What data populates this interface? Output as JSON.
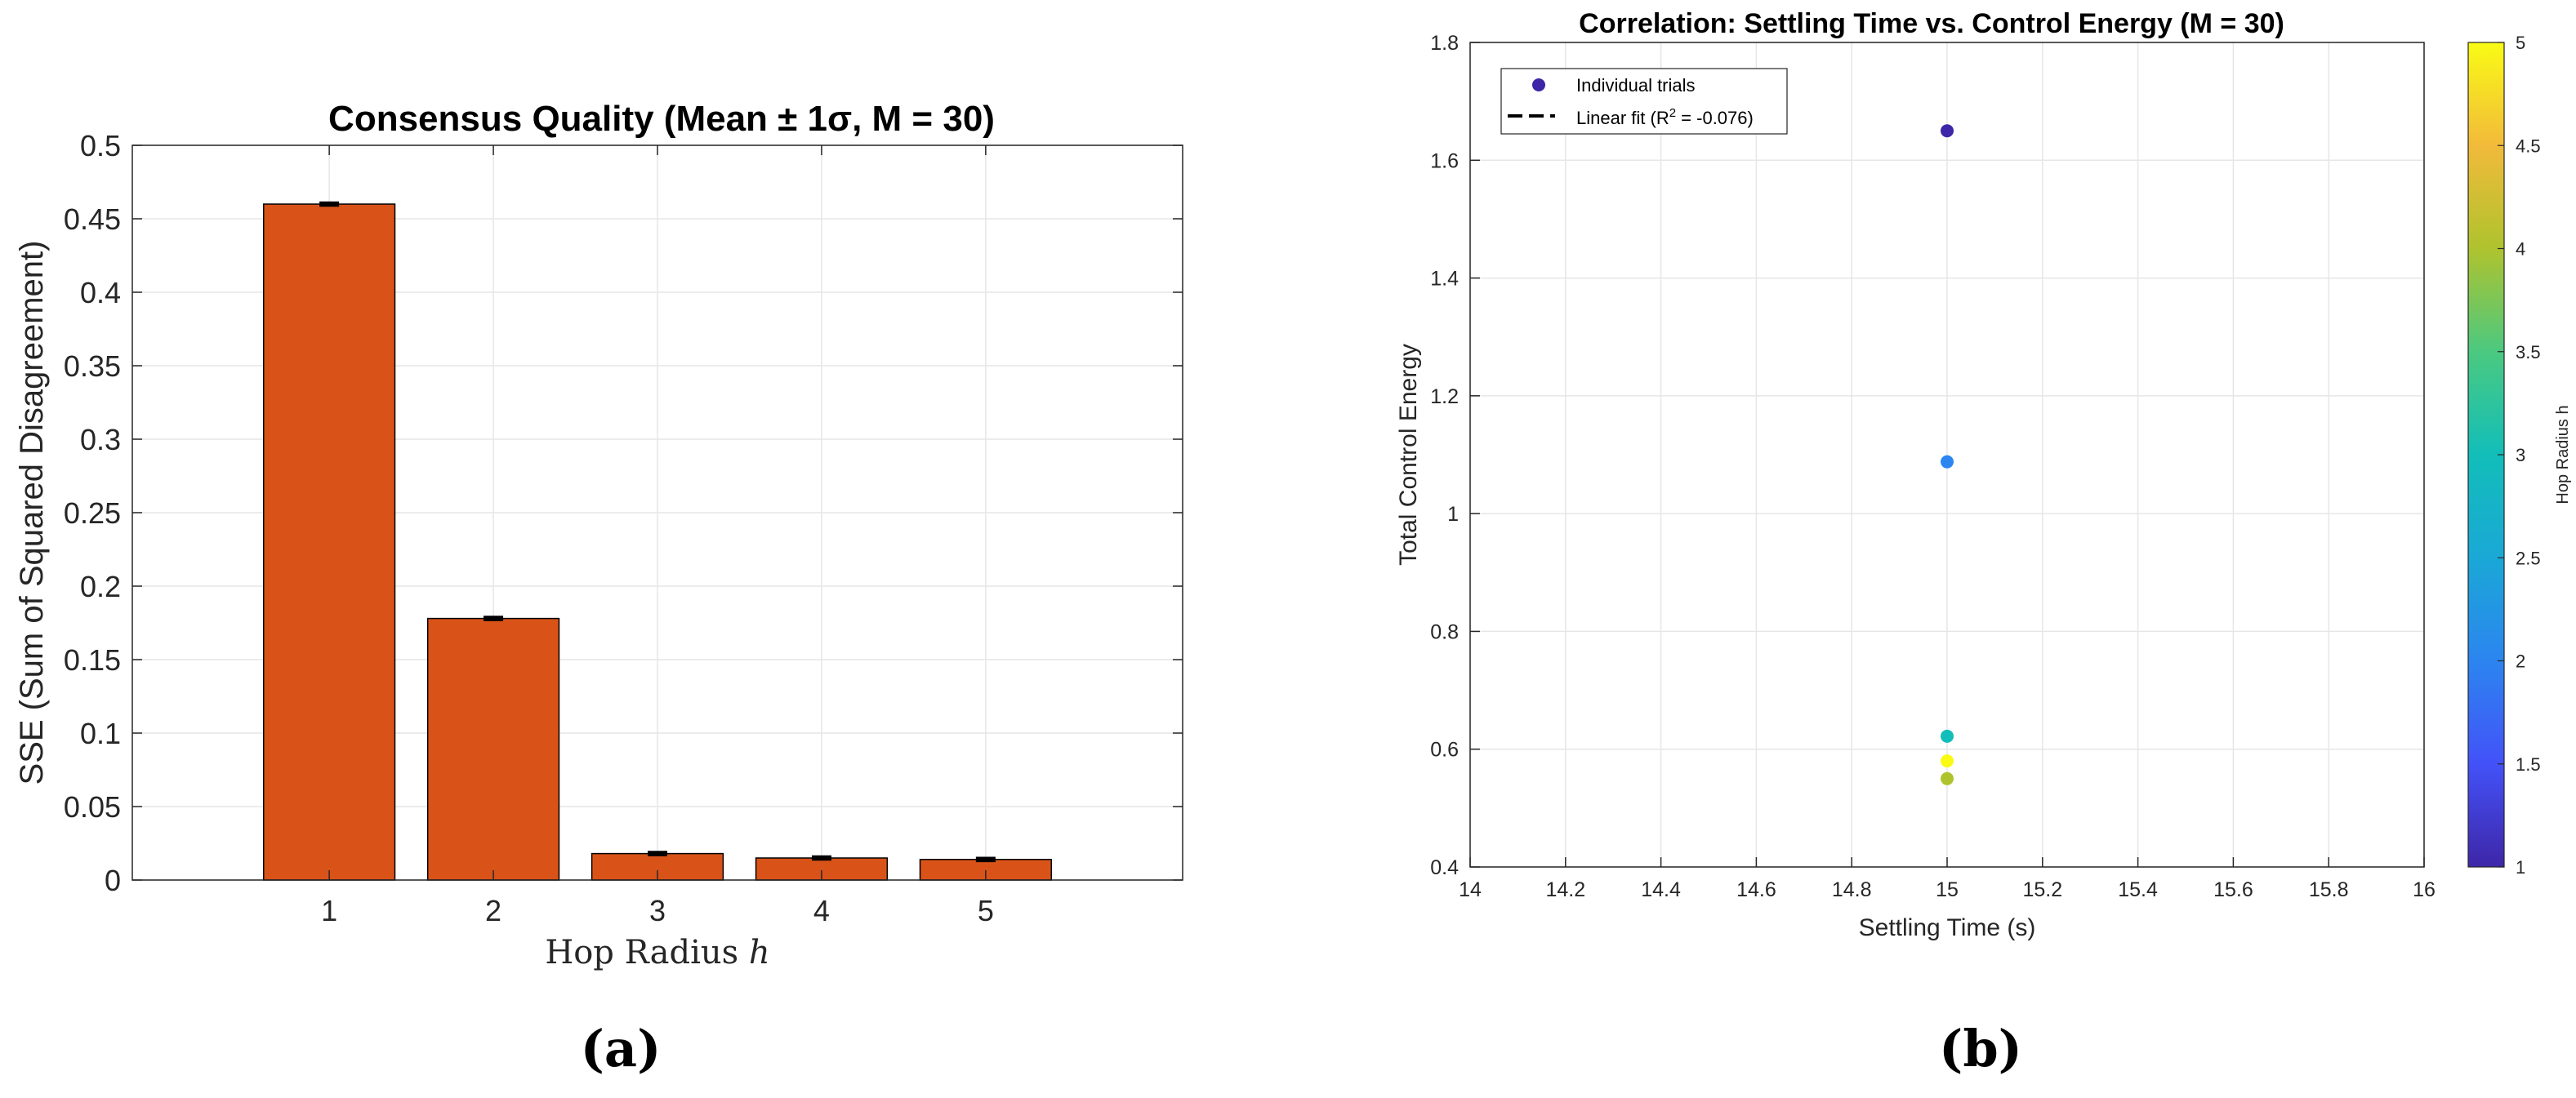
{
  "chart_data": [
    {
      "type": "bar",
      "title": "Consensus Quality (Mean ± 1σ, M = 30)",
      "xlabel_text": "Hop Radius ",
      "xlabel_var": "h",
      "ylabel": "SSE (Sum of Squared Disagreement)",
      "categories": [
        "1",
        "2",
        "3",
        "4",
        "5"
      ],
      "values": [
        0.46,
        0.178,
        0.018,
        0.015,
        0.014
      ],
      "errors": [
        0.001,
        0.001,
        0.001,
        0.001,
        0.001
      ],
      "xlim": [
        -0.2,
        6.2
      ],
      "ylim": [
        0,
        0.5
      ],
      "yticks": [
        0,
        0.05,
        0.1,
        0.15,
        0.2,
        0.25,
        0.3,
        0.35,
        0.4,
        0.45,
        0.5
      ],
      "ytick_labels": [
        "0",
        "0.05",
        "0.1",
        "0.15",
        "0.2",
        "0.25",
        "0.3",
        "0.35",
        "0.4",
        "0.45",
        "0.5"
      ],
      "grid": true,
      "bar_color": "#D95319",
      "panel_label": "(a)"
    },
    {
      "type": "scatter",
      "title": "Correlation: Settling Time vs. Control Energy (M = 30)",
      "xlabel": "Settling Time (s)",
      "ylabel": "Total Control Energy",
      "xlim": [
        14,
        16
      ],
      "ylim": [
        0.4,
        1.8
      ],
      "xticks": [
        14,
        14.2,
        14.4,
        14.6,
        14.8,
        15,
        15.2,
        15.4,
        15.6,
        15.8,
        16
      ],
      "xtick_labels": [
        "14",
        "14.2",
        "14.4",
        "14.6",
        "14.8",
        "15",
        "15.2",
        "15.4",
        "15.6",
        "15.8",
        "16"
      ],
      "yticks": [
        0.4,
        0.6,
        0.8,
        1,
        1.2,
        1.4,
        1.6,
        1.8
      ],
      "ytick_labels": [
        "0.4",
        "0.6",
        "0.8",
        "1",
        "1.2",
        "1.4",
        "1.6",
        "1.8"
      ],
      "grid": true,
      "points": [
        {
          "x": 15,
          "y": 1.65,
          "h": 1
        },
        {
          "x": 15,
          "y": 1.088,
          "h": 2
        },
        {
          "x": 15,
          "y": 0.622,
          "h": 3
        },
        {
          "x": 15,
          "y": 0.55,
          "h": 4
        },
        {
          "x": 15,
          "y": 0.58,
          "h": 5
        }
      ],
      "legend": {
        "position": "top-left",
        "scatter_label": "Individual trials",
        "fit_label_prefix": "Linear fit (R",
        "fit_label_sup": "2",
        "fit_label_suffix": " = -0.076)"
      },
      "colorbar": {
        "label": "Hop Radius h",
        "range": [
          1,
          5
        ],
        "ticks": [
          1,
          1.5,
          2,
          2.5,
          3,
          3.5,
          4,
          4.5,
          5
        ],
        "tick_labels": [
          "1",
          "1.5",
          "2",
          "2.5",
          "3",
          "3.5",
          "4",
          "4.5",
          "5"
        ],
        "colormap": "parula"
      },
      "panel_label": "(b)"
    }
  ]
}
